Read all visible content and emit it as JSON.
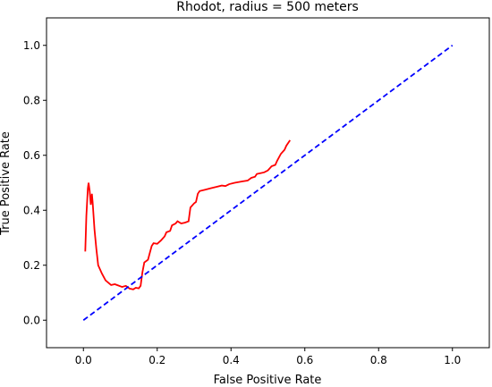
{
  "chart_data": {
    "type": "line",
    "title": "Rhodot, radius = 500 meters",
    "xlabel": "False Positive Rate",
    "ylabel": "True Positive Rate",
    "xlim": [
      -0.1,
      1.1
    ],
    "ylim": [
      -0.1,
      1.1
    ],
    "xticks": [
      0.0,
      0.2,
      0.4,
      0.6,
      0.8,
      1.0
    ],
    "yticks": [
      0.0,
      0.2,
      0.4,
      0.6,
      0.8,
      1.0
    ],
    "xtick_labels": [
      "0.0",
      "0.2",
      "0.4",
      "0.6",
      "0.8",
      "1.0"
    ],
    "ytick_labels": [
      "0.0",
      "0.2",
      "0.4",
      "0.6",
      "0.8",
      "1.0"
    ],
    "grid": false,
    "series": [
      {
        "color": "#ff0000",
        "style": "solid",
        "points": [
          [
            0.005,
            0.25
          ],
          [
            0.008,
            0.38
          ],
          [
            0.012,
            0.48
          ],
          [
            0.014,
            0.5
          ],
          [
            0.017,
            0.47
          ],
          [
            0.02,
            0.42
          ],
          [
            0.023,
            0.46
          ],
          [
            0.025,
            0.43
          ],
          [
            0.03,
            0.33
          ],
          [
            0.035,
            0.26
          ],
          [
            0.04,
            0.2
          ],
          [
            0.05,
            0.17
          ],
          [
            0.06,
            0.145
          ],
          [
            0.075,
            0.128
          ],
          [
            0.085,
            0.131
          ],
          [
            0.095,
            0.126
          ],
          [
            0.105,
            0.121
          ],
          [
            0.115,
            0.125
          ],
          [
            0.125,
            0.115
          ],
          [
            0.135,
            0.112
          ],
          [
            0.142,
            0.118
          ],
          [
            0.15,
            0.116
          ],
          [
            0.155,
            0.125
          ],
          [
            0.16,
            0.175
          ],
          [
            0.165,
            0.21
          ],
          [
            0.17,
            0.215
          ],
          [
            0.175,
            0.22
          ],
          [
            0.18,
            0.245
          ],
          [
            0.185,
            0.27
          ],
          [
            0.19,
            0.28
          ],
          [
            0.2,
            0.278
          ],
          [
            0.21,
            0.29
          ],
          [
            0.22,
            0.305
          ],
          [
            0.225,
            0.32
          ],
          [
            0.235,
            0.325
          ],
          [
            0.24,
            0.345
          ],
          [
            0.25,
            0.352
          ],
          [
            0.255,
            0.36
          ],
          [
            0.265,
            0.352
          ],
          [
            0.275,
            0.355
          ],
          [
            0.285,
            0.36
          ],
          [
            0.29,
            0.41
          ],
          [
            0.3,
            0.425
          ],
          [
            0.305,
            0.43
          ],
          [
            0.31,
            0.46
          ],
          [
            0.315,
            0.47
          ],
          [
            0.33,
            0.475
          ],
          [
            0.345,
            0.48
          ],
          [
            0.36,
            0.485
          ],
          [
            0.375,
            0.49
          ],
          [
            0.385,
            0.488
          ],
          [
            0.395,
            0.495
          ],
          [
            0.41,
            0.5
          ],
          [
            0.43,
            0.505
          ],
          [
            0.445,
            0.508
          ],
          [
            0.455,
            0.518
          ],
          [
            0.465,
            0.522
          ],
          [
            0.47,
            0.532
          ],
          [
            0.48,
            0.535
          ],
          [
            0.49,
            0.538
          ],
          [
            0.5,
            0.545
          ],
          [
            0.51,
            0.56
          ],
          [
            0.52,
            0.565
          ],
          [
            0.525,
            0.58
          ],
          [
            0.535,
            0.605
          ],
          [
            0.545,
            0.62
          ],
          [
            0.55,
            0.635
          ],
          [
            0.56,
            0.655
          ]
        ]
      },
      {
        "color": "#0000ff",
        "style": "dashed",
        "points": [
          [
            0.0,
            0.0
          ],
          [
            1.0,
            1.0
          ]
        ]
      }
    ]
  }
}
